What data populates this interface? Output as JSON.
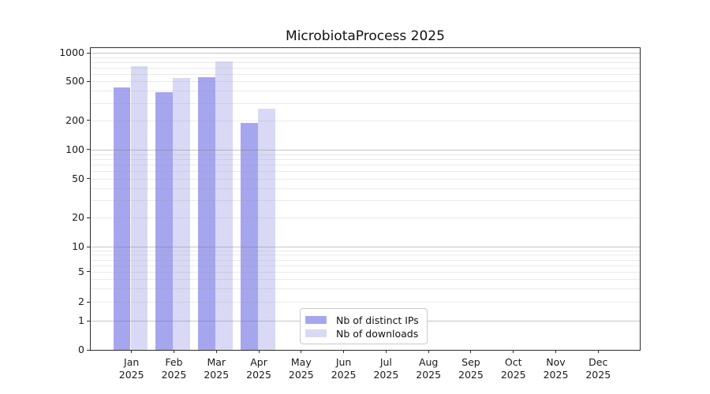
{
  "chart_data": {
    "type": "bar",
    "title": "MicrobiotaProcess 2025",
    "categories": [
      "Jan",
      "Feb",
      "Mar",
      "Apr",
      "May",
      "Jun",
      "Jul",
      "Aug",
      "Sep",
      "Oct",
      "Nov",
      "Dec"
    ],
    "category_year": "2025",
    "series": [
      {
        "name": "Nb of distinct IPs",
        "color": "#a6a6ee",
        "values": [
          435,
          390,
          550,
          188,
          null,
          null,
          null,
          null,
          null,
          null,
          null,
          null
        ]
      },
      {
        "name": "Nb of downloads",
        "color": "#d9d9f6",
        "values": [
          730,
          545,
          815,
          265,
          null,
          null,
          null,
          null,
          null,
          null,
          null,
          null
        ]
      }
    ],
    "y_axis": {
      "ticks": [
        0,
        1,
        2,
        5,
        10,
        20,
        50,
        100,
        200,
        500,
        1000
      ],
      "scale": "log-like",
      "grid": true
    },
    "legend": {
      "position": "bottom-center"
    }
  }
}
